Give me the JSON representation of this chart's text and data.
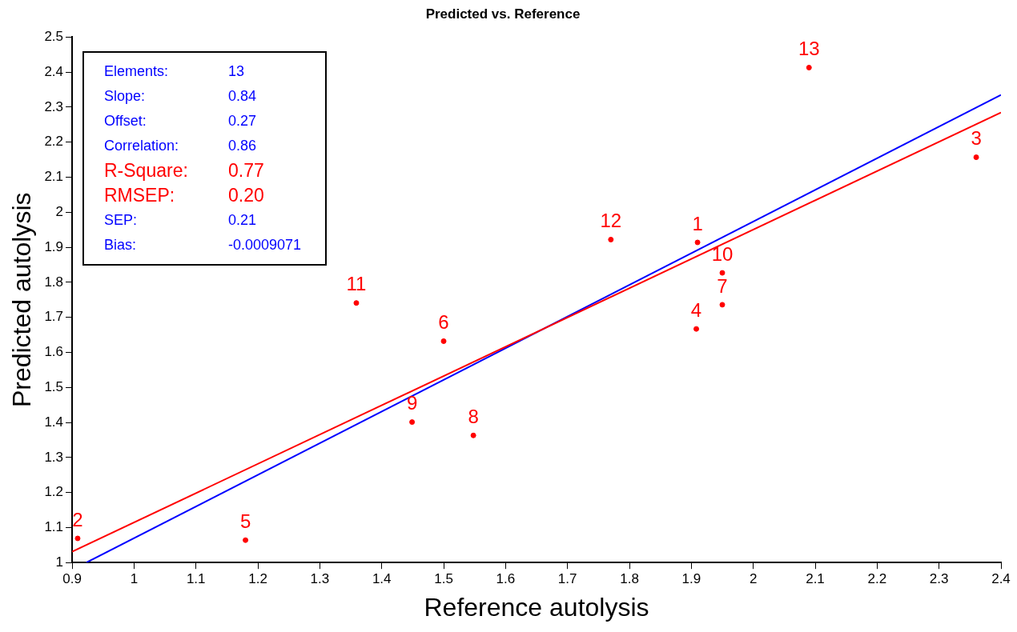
{
  "chart_data": {
    "type": "scatter",
    "title": "Predicted vs. Reference",
    "xlabel": "Reference autolysis",
    "ylabel": "Predicted autolysis",
    "xlim": [
      0.9,
      2.4
    ],
    "xticks": [
      0.9,
      1,
      1.1,
      1.2,
      1.3,
      1.4,
      1.5,
      1.6,
      1.7,
      1.8,
      1.9,
      2,
      2.1,
      2.2,
      2.3,
      2.4
    ],
    "ylim": [
      1,
      2.5
    ],
    "yticks": [
      1,
      1.1,
      1.2,
      1.3,
      1.4,
      1.5,
      1.6,
      1.7,
      1.8,
      1.9,
      2,
      2.1,
      2.2,
      2.3,
      2.4,
      2.5
    ],
    "grid": false,
    "legend": false,
    "series": [
      {
        "marker": "circle",
        "color": "#ff0000",
        "x": [
          1.91,
          0.909,
          2.36,
          1.908,
          1.18,
          1.5,
          1.95,
          1.548,
          1.449,
          1.95,
          1.359,
          1.77,
          2.09
        ],
        "values": [
          1.914,
          1.069,
          2.157,
          1.667,
          1.064,
          1.632,
          1.736,
          1.363,
          1.401,
          1.827,
          1.741,
          1.922,
          2.413
        ]
      },
      {
        "type": "line",
        "color": "#ff0000",
        "x": [
          0.9,
          2.4
        ],
        "values": [
          1.031,
          2.285
        ]
      },
      {
        "type": "line",
        "color": "#0000ff",
        "x": [
          0.923,
          2.4
        ],
        "values": [
          1,
          2.335
        ]
      }
    ],
    "annotations": [
      {
        "text": "1",
        "x": 1.91,
        "y": 1.914
      },
      {
        "text": "2",
        "x": 0.909,
        "y": 1.069
      },
      {
        "text": "3",
        "x": 2.36,
        "y": 2.157
      },
      {
        "text": "4",
        "x": 1.908,
        "y": 1.667
      },
      {
        "text": "5",
        "x": 1.18,
        "y": 1.064
      },
      {
        "text": "6",
        "x": 1.5,
        "y": 1.632
      },
      {
        "text": "7",
        "x": 1.95,
        "y": 1.736
      },
      {
        "text": "8",
        "x": 1.548,
        "y": 1.363
      },
      {
        "text": "9",
        "x": 1.449,
        "y": 1.401
      },
      {
        "text": "10",
        "x": 1.95,
        "y": 1.827
      },
      {
        "text": "11",
        "x": 1.359,
        "y": 1.741
      },
      {
        "text": "12",
        "x": 1.77,
        "y": 1.922
      },
      {
        "text": "13",
        "x": 2.09,
        "y": 2.413
      },
      "Elements: 13",
      "Slope: 0.84",
      "Offset: 0.27",
      "Correlation: 0.86",
      "R-Square: 0.77",
      "RMSEP: 0.20",
      "SEP: 0.21",
      "Bias: -0.0009071"
    ]
  }
}
